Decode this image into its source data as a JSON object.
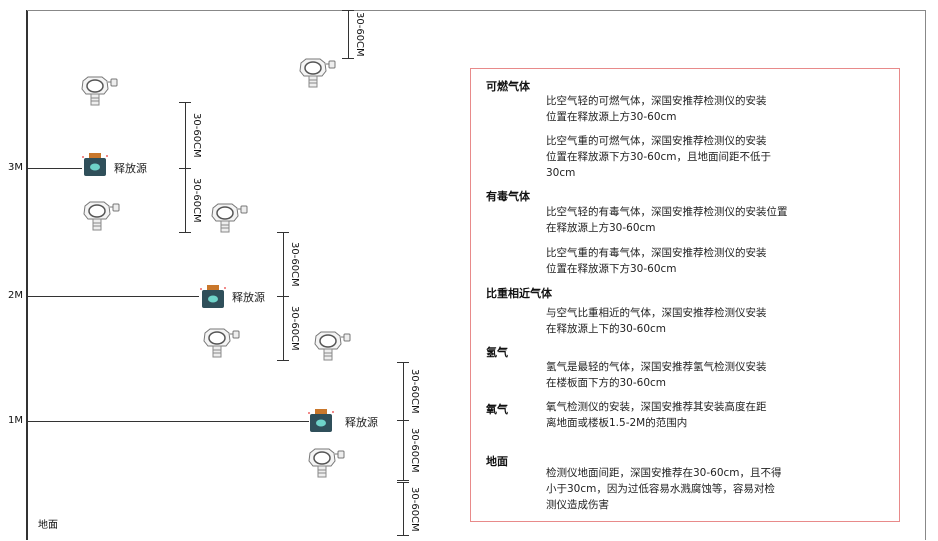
{
  "levels": {
    "m3": "3M",
    "m2": "2M",
    "m1": "1M",
    "ground": "地面"
  },
  "dimension_label": "30-60CM",
  "source_label": "释放源",
  "colors": {
    "frame": "#333333",
    "box_border": "#e88a8a",
    "source_body": "#2f4f5a",
    "source_cap": "#c9772b",
    "source_glyph": "#6fd3c9"
  },
  "icons": {
    "detector": "gas-detector-icon",
    "source": "release-source-icon"
  },
  "info": {
    "sections": [
      {
        "title": "可燃气体",
        "paras": [
          [
            "比空气轻的可燃气体，深国安推荐检测仪的安装",
            "位置在释放源上方30-60cm"
          ],
          [
            "比空气重的可燃气体，深国安推荐检测仪的安装",
            "位置在释放源下方30-60cm，且地面间距不低于",
            "30cm"
          ]
        ]
      },
      {
        "title": "有毒气体",
        "paras": [
          [
            "比空气轻的有毒气体，深国安推荐检测仪的安装位置",
            "在释放源上方30-60cm"
          ],
          [
            "比空气重的有毒气体，深国安推荐检测仪的安装",
            "位置在释放源下方30-60cm"
          ]
        ]
      },
      {
        "title": "比重相近气体",
        "paras": [
          [
            "与空气比重相近的气体，深国安推荐检测仪安装",
            "在释放源上下的30-60cm"
          ]
        ]
      },
      {
        "title": "氢气",
        "paras": [
          [
            "氢气是最轻的气体，深国安推荐氢气检测仪安装",
            "在楼板面下方的30-60cm"
          ]
        ]
      },
      {
        "title": "氧气",
        "paras": [
          [
            "氧气检测仪的安装，深国安推荐其安装高度在距",
            "离地面或楼板1.5-2M的范围内"
          ]
        ]
      },
      {
        "title": "地面",
        "paras": [
          [
            "检测仪地面间距，深国安推荐在30-60cm，且不得",
            "小于30cm，因为过低容易水溅腐蚀等，容易对检",
            "测仪造成伤害"
          ]
        ]
      }
    ]
  }
}
